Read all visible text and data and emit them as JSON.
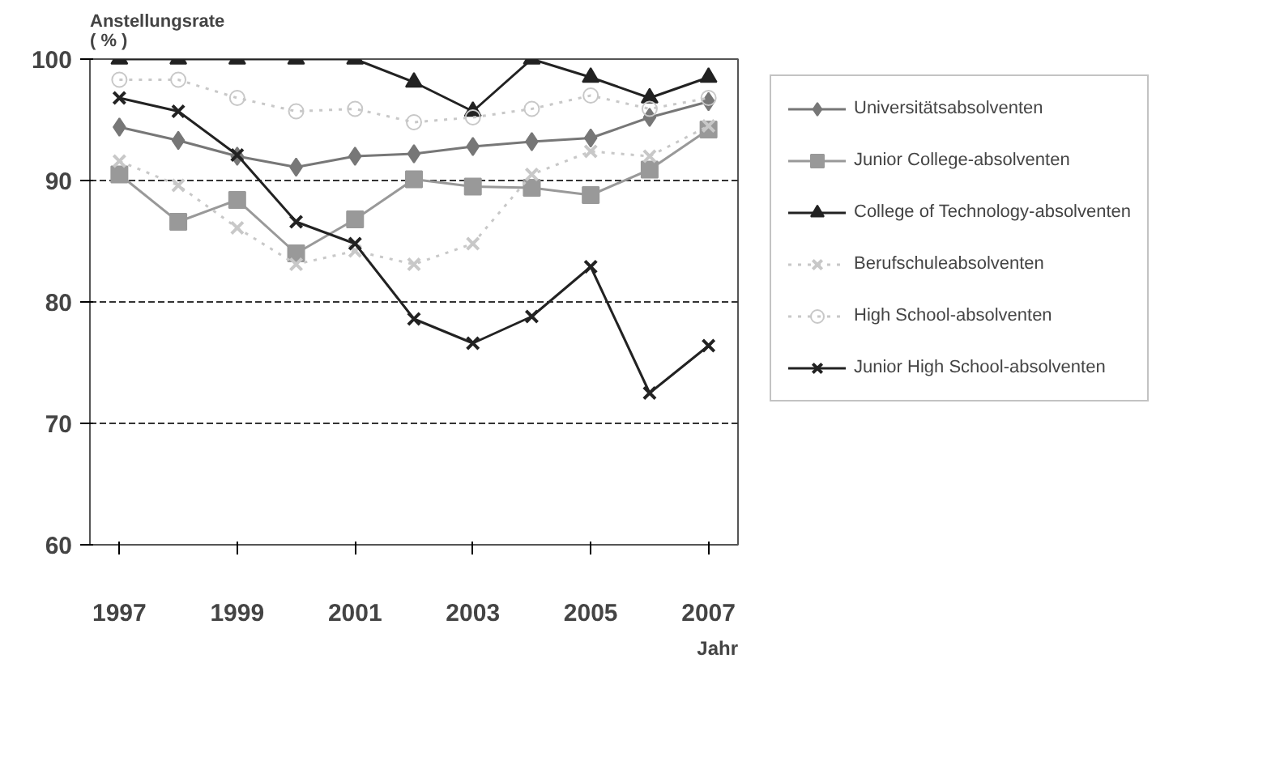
{
  "chart_data": {
    "type": "line",
    "ylabel": "Anstellungsrate\n( % )",
    "xlabel": "Jahr",
    "x": [
      1997,
      1998,
      1999,
      2000,
      2001,
      2002,
      2003,
      2004,
      2005,
      2006,
      2007
    ],
    "xlim": [
      1996.5,
      2007.5
    ],
    "xticks": [
      1997,
      1999,
      2001,
      2003,
      2005,
      2007
    ],
    "ylim": [
      60,
      100
    ],
    "yticks": [
      60,
      70,
      80,
      90,
      100
    ],
    "grid": "y",
    "legend": "right",
    "series": [
      {
        "name": "Universitätsabsolventen",
        "color": "#777777",
        "marker": "diamond",
        "line_style": "solid",
        "values": [
          94.4,
          93.3,
          92.0,
          91.1,
          92.0,
          92.2,
          92.8,
          93.2,
          93.5,
          95.2,
          96.5
        ]
      },
      {
        "name": "Junior College-absolventen",
        "color": "#999999",
        "marker": "square",
        "line_style": "solid",
        "values": [
          90.5,
          86.6,
          88.4,
          84.0,
          86.8,
          90.1,
          89.5,
          89.4,
          88.8,
          90.9,
          94.2
        ]
      },
      {
        "name": "College of Technology-absolventen",
        "color": "#222222",
        "marker": "triangle",
        "line_style": "solid",
        "values": [
          100,
          100,
          100,
          100,
          100,
          98.1,
          95.7,
          100,
          98.5,
          96.8,
          98.5
        ]
      },
      {
        "name": "Berufschuleabsolventen",
        "color": "#c8c8c8",
        "marker": "cross",
        "line_style": "dotted",
        "values": [
          91.6,
          89.6,
          86.1,
          83.1,
          84.2,
          83.1,
          84.8,
          90.5,
          92.4,
          92.0,
          94.5
        ]
      },
      {
        "name": "High School-absolventen",
        "color": "#c8c8c8",
        "marker": "circle",
        "line_style": "dotted",
        "values": [
          98.3,
          98.3,
          96.8,
          95.7,
          95.9,
          94.8,
          95.2,
          95.9,
          97.0,
          95.9,
          96.8
        ]
      },
      {
        "name": "Junior High School-absolventen",
        "color": "#222222",
        "marker": "cross",
        "line_style": "solid",
        "values": [
          96.8,
          95.7,
          92.1,
          86.6,
          84.8,
          78.6,
          76.6,
          78.8,
          82.9,
          72.5,
          76.4
        ]
      }
    ]
  }
}
